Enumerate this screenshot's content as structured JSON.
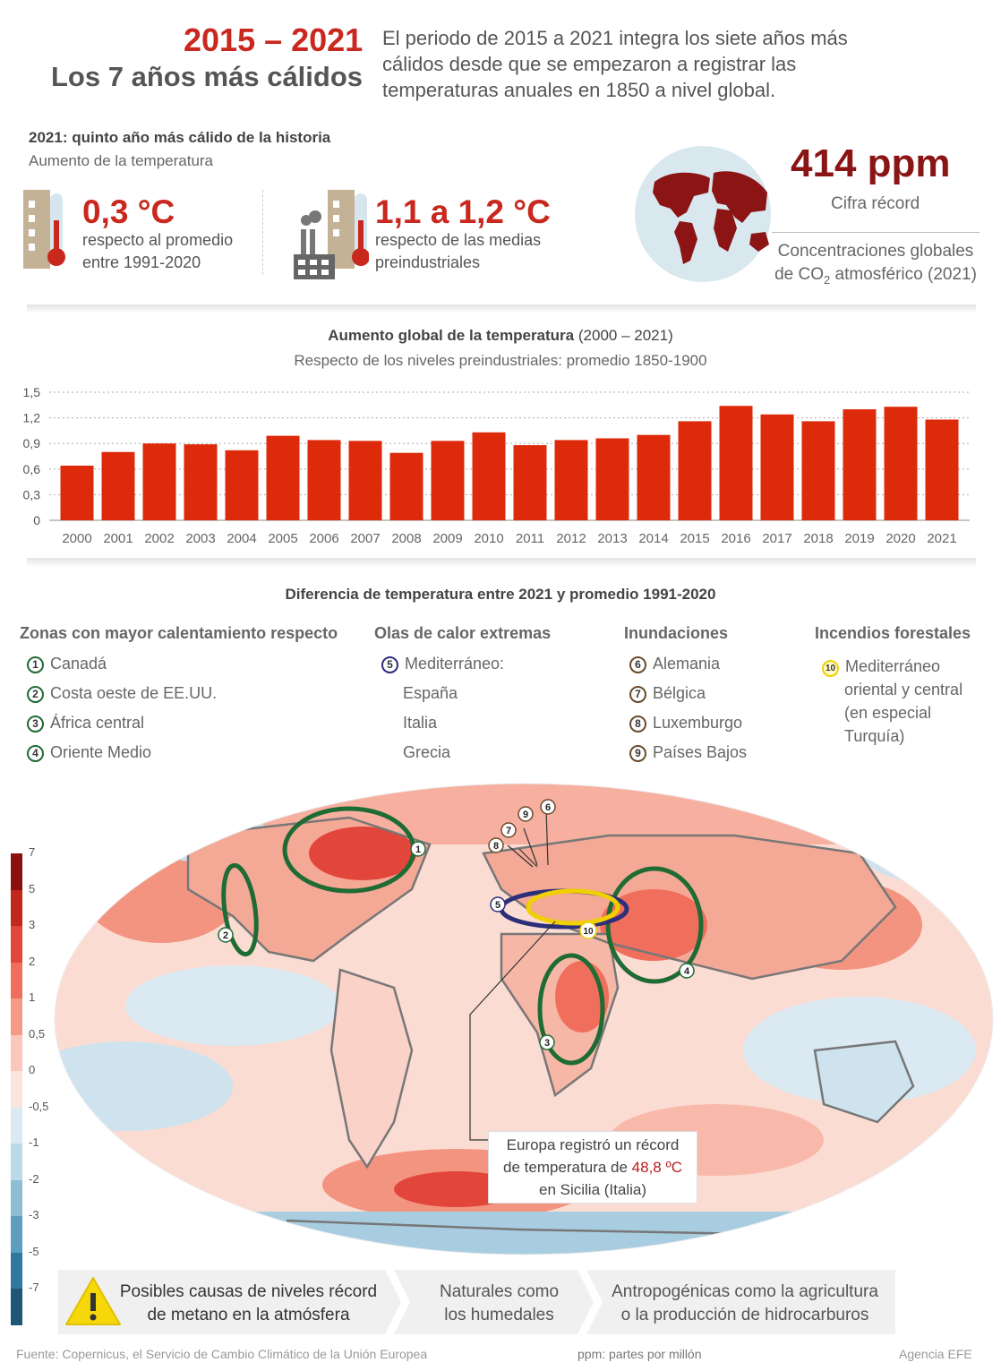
{
  "header": {
    "years": "2015 – 2021",
    "subtitle": "Los 7 años más cálidos",
    "intro": [
      "El periodo de 2015 a 2021 integra los siete años más",
      "cálidos desde que se empezaron a registrar las",
      "temperaturas anuales en 1850 a nivel global."
    ]
  },
  "stats": {
    "heading": "2021: quinto año más cálido de la historia",
    "subheading": "Aumento de la temperatura",
    "stat1": {
      "value": "0,3 °C",
      "line1": "respecto al promedio",
      "line2": "entre 1991-2020"
    },
    "stat2": {
      "value": "1,1 a 1,2 °C",
      "line1": "respecto de las medias",
      "line2": "preindustriales"
    },
    "co2": {
      "value": "414 ppm",
      "label": "Cifra récord",
      "desc1": "Concentraciones globales",
      "desc2_pre": "de CO",
      "desc2_sub": "2",
      "desc2_post": " atmosférico (2021)"
    }
  },
  "chart_data": {
    "type": "bar",
    "title": "Aumento global de la temperatura",
    "title_suffix": "(2000 – 2021)",
    "subtitle": "Respecto de los niveles preindustriales: promedio 1850-1900",
    "categories": [
      "2000",
      "2001",
      "2002",
      "2003",
      "2004",
      "2005",
      "2006",
      "2007",
      "2008",
      "2009",
      "2010",
      "2011",
      "2012",
      "2013",
      "2014",
      "2015",
      "2016",
      "2017",
      "2018",
      "2019",
      "2020",
      "2021"
    ],
    "values": [
      0.64,
      0.8,
      0.9,
      0.89,
      0.82,
      0.99,
      0.94,
      0.93,
      0.79,
      0.93,
      1.03,
      0.88,
      0.94,
      0.96,
      1.0,
      1.16,
      1.34,
      1.24,
      1.16,
      1.3,
      1.33,
      1.18
    ],
    "yticks": [
      "1,5",
      "1,2",
      "0,9",
      "0,6",
      "0,3",
      "0"
    ],
    "ylim": [
      0,
      1.5
    ],
    "grid": true,
    "color": "#dd2a0b"
  },
  "map": {
    "title": "Diferencia de temperatura entre 2021 y promedio 1991-2020",
    "categories": [
      {
        "head": "Zonas con mayor calentamiento respecto",
        "items": [
          {
            "n": "1",
            "t": "Canadá"
          },
          {
            "n": "2",
            "t": "Costa oeste de EE.UU."
          },
          {
            "n": "3",
            "t": "África central"
          },
          {
            "n": "4",
            "t": "Oriente Medio"
          }
        ]
      },
      {
        "head": "Olas de calor extremas",
        "items": [
          {
            "n": "5",
            "t": "Mediterráneo:"
          },
          {
            "n": "",
            "t": "España"
          },
          {
            "n": "",
            "t": "Italia"
          },
          {
            "n": "",
            "t": "Grecia"
          }
        ]
      },
      {
        "head": "Inundaciones",
        "items": [
          {
            "n": "6",
            "t": "Alemania"
          },
          {
            "n": "7",
            "t": "Bélgica"
          },
          {
            "n": "8",
            "t": "Luxemburgo"
          },
          {
            "n": "9",
            "t": "Países Bajos"
          }
        ]
      },
      {
        "head": "Incendios forestales",
        "items": [
          {
            "n": "10",
            "t": "Mediterráneo"
          },
          {
            "n": "",
            "t": "oriental y central"
          },
          {
            "n": "",
            "t": "(en especial"
          },
          {
            "n": "",
            "t": "Turquía)"
          }
        ]
      }
    ],
    "scale": [
      "7",
      "5",
      "3",
      "2",
      "1",
      "0,5",
      "0",
      "-0,5",
      "-1",
      "-2",
      "-3",
      "-5",
      "-7"
    ],
    "scale_colors": [
      "#8b0f0f",
      "#c1271c",
      "#e2453a",
      "#ef6f5c",
      "#f69a88",
      "#fbc7bb",
      "#fbe4de",
      "#dbeaf2",
      "#bcd9e7",
      "#8fbdd4",
      "#5d9dbe",
      "#2f78a0",
      "#1f5675"
    ],
    "callout": {
      "l1": "Europa registró un récord",
      "l2_pre": "de temperatura de ",
      "l2_red": "48,8 ºC",
      "l3": "en Sicilia (Italia)"
    }
  },
  "methane": {
    "text1": "Posibles causas de niveles récord",
    "text2": "de metano en la atmósfera",
    "c1a": "Naturales como",
    "c1b": "los humedales",
    "c2a": "Antropogénicas como la agricultura",
    "c2b": "o la producción de hidrocarburos"
  },
  "footer": {
    "source": "Fuente: Copernicus, el Servicio de Cambio Climático de la Unión Europea",
    "ppm": "ppm: partes por millón",
    "agency": "Agencia EFE"
  }
}
